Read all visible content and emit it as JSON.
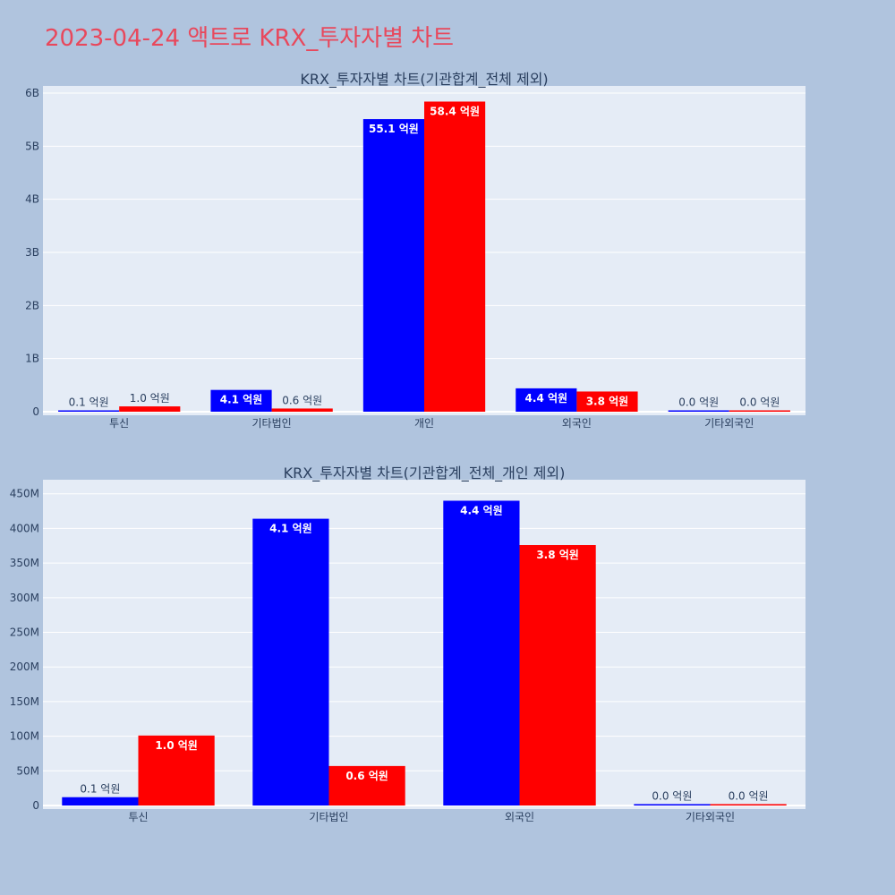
{
  "page_title": "2023-04-24 액트로 KRX_투자자별 차트",
  "colors": {
    "background": "#b0c4de",
    "plot_bg": "#e5ecf6",
    "title": "#e8485c",
    "series_a": "#0000ff",
    "series_b": "#ff0000",
    "text": "#2a3f5f"
  },
  "chart_data": [
    {
      "type": "bar",
      "title": "KRX_투자자별 차트(기관합계_전체 제외)",
      "categories": [
        "투신",
        "기타법인",
        "개인",
        "외국인",
        "기타외국인"
      ],
      "series": [
        {
          "color": "#0000ff",
          "values": [
            12000000,
            410000000,
            5510000000,
            440000000,
            0
          ],
          "labels": [
            "0.1 억원",
            "4.1 억원",
            "55.1 억원",
            "4.4 억원",
            "0.0 억원"
          ]
        },
        {
          "color": "#ff0000",
          "values": [
            100000000,
            60000000,
            5840000000,
            380000000,
            0
          ],
          "labels": [
            "1.0 억원",
            "0.6 억원",
            "58.4 억원",
            "3.8 억원",
            "0.0 억원"
          ]
        }
      ],
      "ylim": [
        0,
        6000000000
      ],
      "yticks": [
        0,
        1000000000,
        2000000000,
        3000000000,
        4000000000,
        5000000000,
        6000000000
      ],
      "ytick_labels": [
        "0",
        "1B",
        "2B",
        "3B",
        "4B",
        "5B",
        "6B"
      ],
      "grid": true
    },
    {
      "type": "bar",
      "title": "KRX_투자자별 차트(기관합계_전체_개인 제외)",
      "categories": [
        "투신",
        "기타법인",
        "외국인",
        "기타외국인"
      ],
      "series": [
        {
          "color": "#0000ff",
          "values": [
            12000000,
            414000000,
            440000000,
            2000000
          ],
          "labels": [
            "0.1 억원",
            "4.1 억원",
            "4.4 억원",
            "0.0 억원"
          ]
        },
        {
          "color": "#ff0000",
          "values": [
            101000000,
            57000000,
            376000000,
            2000000
          ],
          "labels": [
            "1.0 억원",
            "0.6 억원",
            "3.8 억원",
            "0.0 억원"
          ]
        }
      ],
      "ylim": [
        0,
        460000000
      ],
      "yticks": [
        0,
        50000000,
        100000000,
        150000000,
        200000000,
        250000000,
        300000000,
        350000000,
        400000000,
        450000000
      ],
      "ytick_labels": [
        "0",
        "50M",
        "100M",
        "150M",
        "200M",
        "250M",
        "300M",
        "350M",
        "400M",
        "450M"
      ],
      "grid": true
    }
  ]
}
